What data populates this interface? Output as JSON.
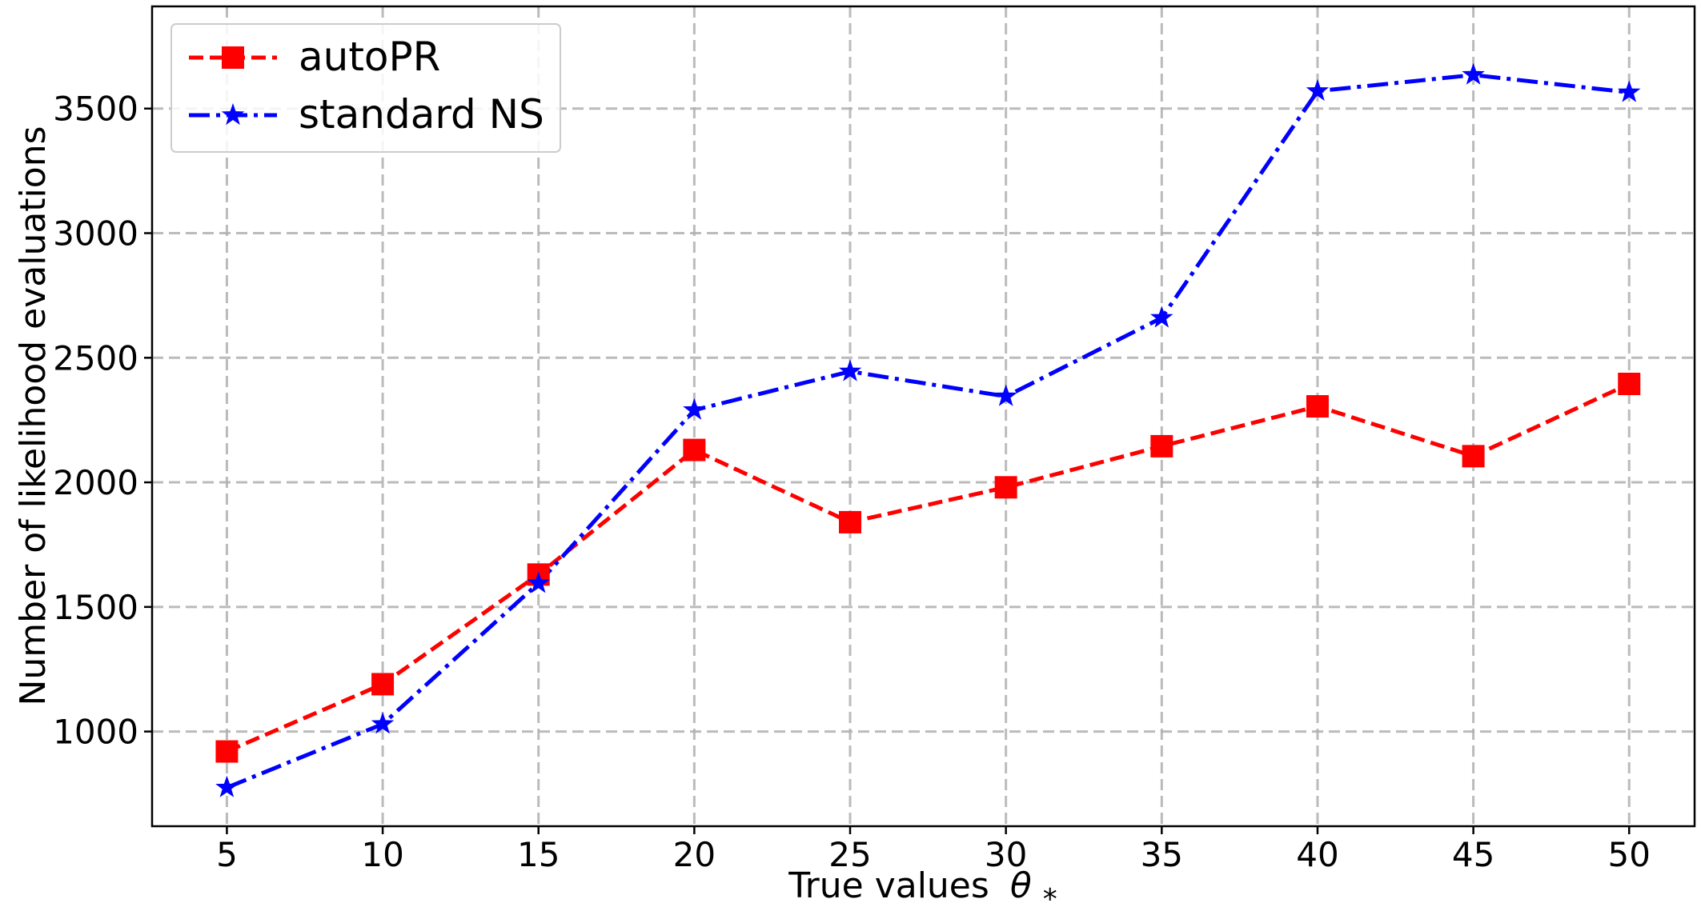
{
  "chart_data": {
    "type": "line",
    "title": "",
    "xlabel": "True values",
    "xlabel_symbol": "θ",
    "xlabel_subscript": "*",
    "ylabel": "Number of likelihood evaluations",
    "x": [
      5,
      10,
      15,
      20,
      25,
      30,
      35,
      40,
      45,
      50
    ],
    "xticks": [
      "5",
      "10",
      "15",
      "20",
      "25",
      "30",
      "35",
      "40",
      "45",
      "50"
    ],
    "yticks": [
      "1000",
      "1500",
      "2000",
      "2500",
      "3000",
      "3500"
    ],
    "ytick_values": [
      1000,
      1500,
      2000,
      2500,
      3000,
      3500
    ],
    "xlim": [
      2.6,
      52.1
    ],
    "ylim": [
      620,
      3910
    ],
    "grid": true,
    "legend_position": "top-left",
    "series": [
      {
        "name": "autoPR",
        "color": "#ff0000",
        "marker": "square",
        "line_style": "dashed",
        "values": [
          920,
          1190,
          1630,
          2130,
          1840,
          1980,
          2145,
          2305,
          2105,
          2395
        ]
      },
      {
        "name": "standard NS",
        "color": "#0000ff",
        "marker": "star",
        "line_style": "dash-dot",
        "values": [
          775,
          1030,
          1595,
          2290,
          2445,
          2345,
          2660,
          3570,
          3635,
          3565
        ]
      }
    ]
  }
}
